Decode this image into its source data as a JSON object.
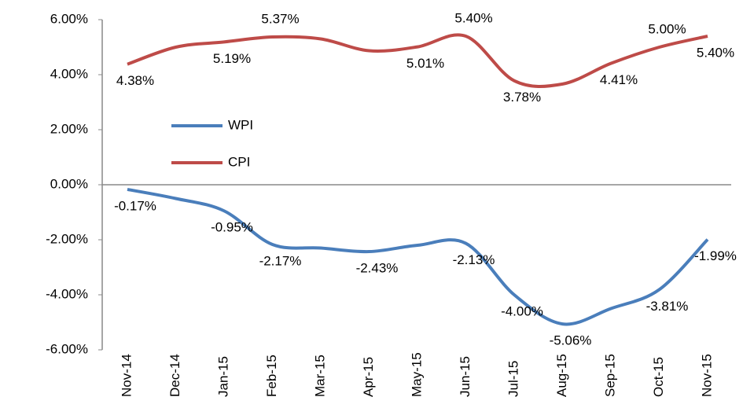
{
  "chart_data": {
    "type": "line",
    "categories": [
      "Nov-14",
      "Dec-14",
      "Jan-15",
      "Feb-15",
      "Mar-15",
      "Apr-15",
      "May-15",
      "Jun-15",
      "Jul-15",
      "Aug-15",
      "Sep-15",
      "Oct-15",
      "Nov-15"
    ],
    "series": [
      {
        "name": "WPI",
        "color": "#4a7ebb",
        "values": [
          -0.17,
          -0.5,
          -0.95,
          -2.17,
          -2.3,
          -2.43,
          -2.2,
          -2.13,
          -4.0,
          -5.06,
          -4.5,
          -3.81,
          -1.99
        ],
        "value_labels": [
          "-0.17%",
          null,
          "-0.95%",
          "-2.17%",
          null,
          "-2.43%",
          null,
          "-2.13%",
          "-4.00%",
          "-5.06%",
          null,
          "-3.81%",
          "-1.99%"
        ]
      },
      {
        "name": "CPI",
        "color": "#be4b48",
        "values": [
          4.38,
          5.0,
          5.19,
          5.37,
          5.3,
          4.87,
          5.01,
          5.4,
          3.78,
          3.66,
          4.41,
          5.0,
          5.4
        ],
        "value_labels": [
          "4.38%",
          null,
          "5.19%",
          "5.37%",
          null,
          null,
          "5.01%",
          "5.40%",
          "3.78%",
          null,
          "4.41%",
          "5.00%",
          "5.40%"
        ]
      }
    ],
    "ylim": [
      -6,
      6
    ],
    "yticks": [
      {
        "value": -6,
        "label": "-6.00%"
      },
      {
        "value": -4,
        "label": "-4.00%"
      },
      {
        "value": -2,
        "label": "-2.00%"
      },
      {
        "value": 0,
        "label": "0.00%"
      },
      {
        "value": 2,
        "label": "2.00%"
      },
      {
        "value": 4,
        "label": "4.00%"
      },
      {
        "value": 6,
        "label": "6.00%"
      }
    ],
    "legend": "center-left"
  }
}
